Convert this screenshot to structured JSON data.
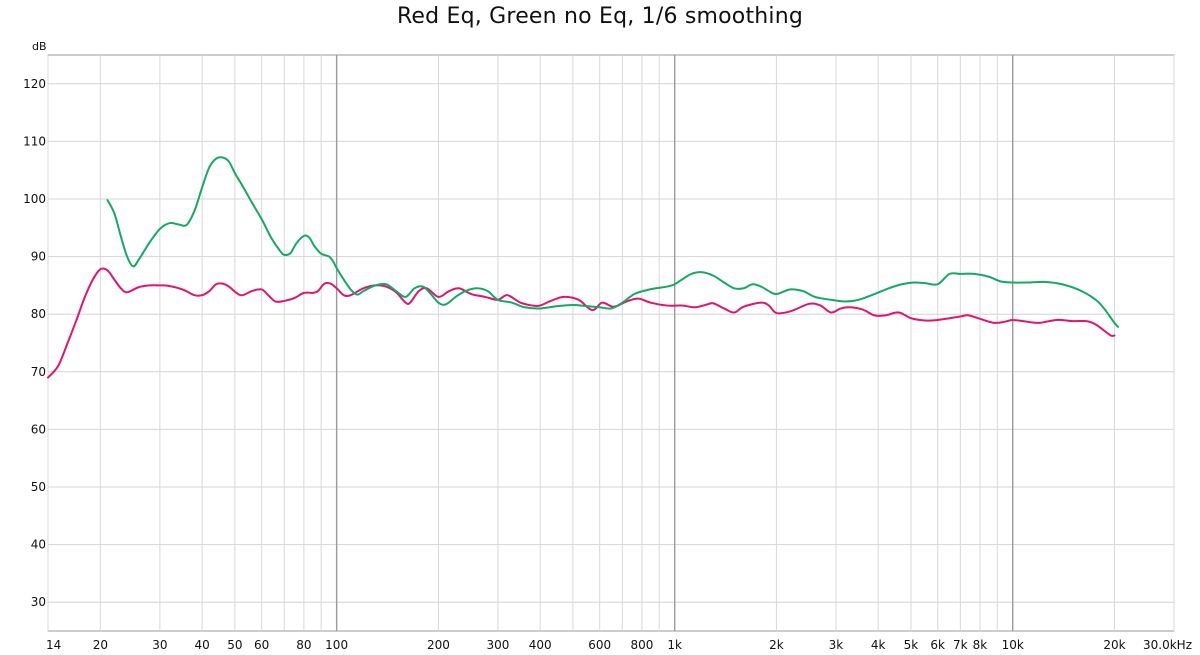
{
  "chart_data": {
    "type": "line",
    "title": "Red Eq, Green no Eq, 1/6 smoothing",
    "ylabel": "dB",
    "x_scale": "log",
    "xlim": [
      14,
      30000
    ],
    "ylim": [
      25,
      125
    ],
    "grid": true,
    "legend": "none",
    "y_ticks": [
      {
        "value": 30,
        "label": "30"
      },
      {
        "value": 40,
        "label": "40"
      },
      {
        "value": 50,
        "label": "50"
      },
      {
        "value": 60,
        "label": "60"
      },
      {
        "value": 70,
        "label": "70"
      },
      {
        "value": 80,
        "label": "80"
      },
      {
        "value": 90,
        "label": "90"
      },
      {
        "value": 100,
        "label": "100"
      },
      {
        "value": 110,
        "label": "110"
      },
      {
        "value": 120,
        "label": "120"
      }
    ],
    "x_ticks": [
      {
        "value": 14,
        "label": "14"
      },
      {
        "value": 20,
        "label": "20"
      },
      {
        "value": 30,
        "label": "30"
      },
      {
        "value": 40,
        "label": "40"
      },
      {
        "value": 50,
        "label": "50"
      },
      {
        "value": 60,
        "label": "60"
      },
      {
        "value": 80,
        "label": "80"
      },
      {
        "value": 100,
        "label": "100"
      },
      {
        "value": 200,
        "label": "200"
      },
      {
        "value": 300,
        "label": "300"
      },
      {
        "value": 400,
        "label": "400"
      },
      {
        "value": 600,
        "label": "600"
      },
      {
        "value": 800,
        "label": "800"
      },
      {
        "value": 1000,
        "label": "1k"
      },
      {
        "value": 2000,
        "label": "2k"
      },
      {
        "value": 3000,
        "label": "3k"
      },
      {
        "value": 4000,
        "label": "4k"
      },
      {
        "value": 5000,
        "label": "5k"
      },
      {
        "value": 6000,
        "label": "6k"
      },
      {
        "value": 7000,
        "label": "7k"
      },
      {
        "value": 8000,
        "label": "8k"
      },
      {
        "value": 10000,
        "label": "10k"
      },
      {
        "value": 20000,
        "label": "20k"
      },
      {
        "value": 30000,
        "label": "30.0kHz"
      }
    ],
    "x_grid_minor": [
      14,
      20,
      30,
      40,
      50,
      60,
      70,
      80,
      90,
      200,
      300,
      400,
      500,
      600,
      700,
      800,
      900,
      2000,
      3000,
      4000,
      5000,
      6000,
      7000,
      8000,
      9000,
      20000,
      30000
    ],
    "x_grid_major": [
      100,
      1000,
      10000
    ],
    "series": [
      {
        "color": "#e0156e",
        "points": [
          [
            14,
            69
          ],
          [
            15,
            71
          ],
          [
            16,
            75
          ],
          [
            17,
            79
          ],
          [
            18,
            83
          ],
          [
            19,
            86
          ],
          [
            20,
            87.8
          ],
          [
            21,
            87.6
          ],
          [
            22,
            86
          ],
          [
            23,
            84.5
          ],
          [
            24,
            83.8
          ],
          [
            26,
            84.7
          ],
          [
            28,
            85
          ],
          [
            30,
            85
          ],
          [
            32,
            84.9
          ],
          [
            35,
            84.3
          ],
          [
            38,
            83.3
          ],
          [
            40,
            83.3
          ],
          [
            42,
            84
          ],
          [
            44,
            85.2
          ],
          [
            46,
            85.3
          ],
          [
            48,
            84.8
          ],
          [
            52,
            83.3
          ],
          [
            56,
            84
          ],
          [
            60,
            84.3
          ],
          [
            63,
            83.2
          ],
          [
            66,
            82.2
          ],
          [
            70,
            82.3
          ],
          [
            75,
            82.8
          ],
          [
            80,
            83.7
          ],
          [
            85,
            83.7
          ],
          [
            88,
            84
          ],
          [
            92,
            85.3
          ],
          [
            96,
            85.3
          ],
          [
            100,
            84.5
          ],
          [
            105,
            83.3
          ],
          [
            110,
            83.3
          ],
          [
            120,
            84.5
          ],
          [
            130,
            85
          ],
          [
            140,
            84.8
          ],
          [
            150,
            83.8
          ],
          [
            160,
            82
          ],
          [
            165,
            82
          ],
          [
            175,
            84
          ],
          [
            185,
            84.5
          ],
          [
            200,
            83
          ],
          [
            215,
            84
          ],
          [
            230,
            84.5
          ],
          [
            250,
            83.5
          ],
          [
            275,
            83
          ],
          [
            300,
            82.5
          ],
          [
            320,
            83.3
          ],
          [
            350,
            82
          ],
          [
            380,
            81.5
          ],
          [
            400,
            81.5
          ],
          [
            430,
            82.3
          ],
          [
            470,
            83
          ],
          [
            520,
            82.5
          ],
          [
            570,
            80.7
          ],
          [
            610,
            82
          ],
          [
            660,
            81.3
          ],
          [
            720,
            82.2
          ],
          [
            780,
            82.7
          ],
          [
            850,
            82
          ],
          [
            950,
            81.5
          ],
          [
            1050,
            81.5
          ],
          [
            1150,
            81.2
          ],
          [
            1250,
            81.7
          ],
          [
            1300,
            81.9
          ],
          [
            1400,
            81
          ],
          [
            1500,
            80.3
          ],
          [
            1600,
            81.3
          ],
          [
            1800,
            82
          ],
          [
            1900,
            81.5
          ],
          [
            2000,
            80.2
          ],
          [
            2200,
            80.5
          ],
          [
            2500,
            81.8
          ],
          [
            2700,
            81.5
          ],
          [
            2900,
            80.3
          ],
          [
            3100,
            81
          ],
          [
            3300,
            81.2
          ],
          [
            3600,
            80.8
          ],
          [
            3900,
            79.8
          ],
          [
            4200,
            79.8
          ],
          [
            4600,
            80.3
          ],
          [
            5000,
            79.3
          ],
          [
            5500,
            78.9
          ],
          [
            6000,
            79
          ],
          [
            6500,
            79.3
          ],
          [
            7000,
            79.6
          ],
          [
            7400,
            79.8
          ],
          [
            8000,
            79.2
          ],
          [
            8800,
            78.5
          ],
          [
            9500,
            78.7
          ],
          [
            10000,
            79
          ],
          [
            11000,
            78.7
          ],
          [
            12000,
            78.5
          ],
          [
            13500,
            79
          ],
          [
            15000,
            78.8
          ],
          [
            16500,
            78.8
          ],
          [
            17500,
            78.3
          ],
          [
            18500,
            77.3
          ],
          [
            19500,
            76.3
          ],
          [
            20000,
            76.3
          ]
        ]
      },
      {
        "color": "#16a866",
        "points": [
          [
            21,
            99.8
          ],
          [
            22,
            97.5
          ],
          [
            23,
            93.5
          ],
          [
            24,
            90
          ],
          [
            25,
            88.3
          ],
          [
            26,
            89.5
          ],
          [
            28,
            92.5
          ],
          [
            30,
            94.8
          ],
          [
            32,
            95.8
          ],
          [
            34,
            95.6
          ],
          [
            36,
            95.5
          ],
          [
            38,
            98
          ],
          [
            40,
            102
          ],
          [
            42,
            105.5
          ],
          [
            44,
            107
          ],
          [
            46,
            107.2
          ],
          [
            48,
            106.5
          ],
          [
            50,
            104.5
          ],
          [
            53,
            102
          ],
          [
            56,
            99.5
          ],
          [
            60,
            96.5
          ],
          [
            64,
            93.3
          ],
          [
            68,
            91
          ],
          [
            70,
            90.3
          ],
          [
            73,
            90.6
          ],
          [
            76,
            92.3
          ],
          [
            80,
            93.6
          ],
          [
            83,
            93.3
          ],
          [
            86,
            91.8
          ],
          [
            90,
            90.5
          ],
          [
            95,
            90
          ],
          [
            98,
            89
          ],
          [
            100,
            88
          ],
          [
            105,
            86
          ],
          [
            110,
            84.3
          ],
          [
            115,
            83.4
          ],
          [
            120,
            84
          ],
          [
            130,
            85
          ],
          [
            140,
            85.2
          ],
          [
            150,
            84
          ],
          [
            160,
            83
          ],
          [
            170,
            84.5
          ],
          [
            180,
            84.8
          ],
          [
            190,
            83.5
          ],
          [
            200,
            82
          ],
          [
            210,
            81.7
          ],
          [
            225,
            83
          ],
          [
            240,
            84
          ],
          [
            260,
            84.5
          ],
          [
            280,
            84
          ],
          [
            300,
            82.5
          ],
          [
            330,
            82
          ],
          [
            360,
            81.2
          ],
          [
            400,
            81
          ],
          [
            450,
            81.4
          ],
          [
            500,
            81.6
          ],
          [
            550,
            81.4
          ],
          [
            600,
            81.2
          ],
          [
            650,
            81
          ],
          [
            700,
            82
          ],
          [
            760,
            83.5
          ],
          [
            830,
            84.2
          ],
          [
            880,
            84.5
          ],
          [
            950,
            84.8
          ],
          [
            1000,
            85.2
          ],
          [
            1050,
            86
          ],
          [
            1120,
            87
          ],
          [
            1200,
            87.3
          ],
          [
            1300,
            86.7
          ],
          [
            1400,
            85.5
          ],
          [
            1500,
            84.5
          ],
          [
            1600,
            84.5
          ],
          [
            1700,
            85.2
          ],
          [
            1800,
            84.8
          ],
          [
            1900,
            84
          ],
          [
            2000,
            83.5
          ],
          [
            2200,
            84.3
          ],
          [
            2400,
            84
          ],
          [
            2600,
            83
          ],
          [
            2900,
            82.5
          ],
          [
            3200,
            82.2
          ],
          [
            3500,
            82.5
          ],
          [
            3900,
            83.5
          ],
          [
            4300,
            84.5
          ],
          [
            4700,
            85.2
          ],
          [
            5100,
            85.5
          ],
          [
            5500,
            85.4
          ],
          [
            6000,
            85.2
          ],
          [
            6500,
            87
          ],
          [
            7000,
            87
          ],
          [
            7700,
            87
          ],
          [
            8500,
            86.5
          ],
          [
            9200,
            85.7
          ],
          [
            10000,
            85.5
          ],
          [
            11000,
            85.5
          ],
          [
            12500,
            85.6
          ],
          [
            14000,
            85.2
          ],
          [
            16000,
            84
          ],
          [
            18000,
            82
          ],
          [
            20000,
            78.5
          ],
          [
            20500,
            77.8
          ]
        ]
      }
    ]
  }
}
